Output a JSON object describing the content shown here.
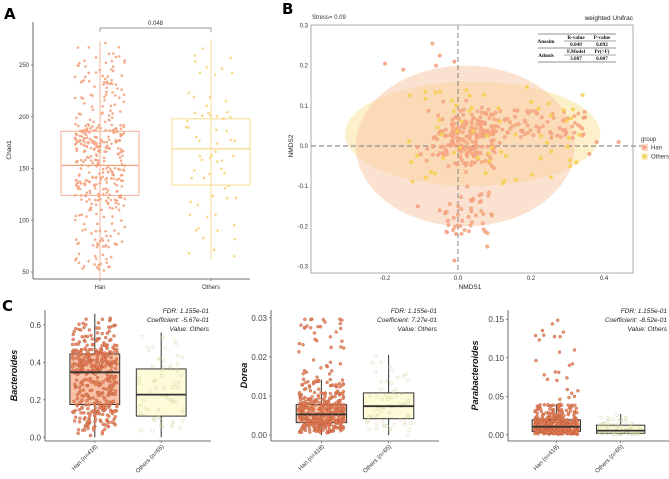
{
  "chart_data": [
    {
      "panel": "A",
      "type": "box-scatter",
      "ylabel": "Chao1",
      "xlabel": "",
      "categories": [
        "Han",
        "Others"
      ],
      "yticks": [
        50,
        100,
        150,
        200,
        250
      ],
      "ylim": [
        43,
        290
      ],
      "significance": {
        "label": "0.048",
        "between": [
          "Han",
          "Others"
        ]
      },
      "boxes": [
        {
          "name": "Han",
          "q1": 124,
          "median": 153,
          "q3": 186,
          "whisker_low": 43,
          "whisker_high": 273,
          "n": 418,
          "color": "#f4a37f"
        },
        {
          "name": "Others",
          "q1": 134,
          "median": 169,
          "q3": 198,
          "whisker_low": 62,
          "whisker_high": 275,
          "n": 65,
          "color": "#f7d57a"
        }
      ]
    },
    {
      "panel": "B",
      "type": "scatter",
      "title": "weighted Unifrac",
      "annotation": "Stress= 0.09",
      "xlabel": "NMDS1",
      "ylabel": "NMDS2",
      "xticks": [
        -0.2,
        0.0,
        0.2,
        0.4
      ],
      "yticks": [
        -0.3,
        -0.2,
        -0.1,
        0.0,
        0.1,
        0.2,
        0.3
      ],
      "xlim": [
        -0.4,
        0.48
      ],
      "ylim": [
        -0.3,
        0.3
      ],
      "legend": {
        "title": "group",
        "position": "right",
        "entries": [
          {
            "name": "Han",
            "color": "#f4a37f"
          },
          {
            "name": "Others",
            "color": "#f5d04e"
          }
        ]
      },
      "ellipses": [
        {
          "group": "Others",
          "cx": 0.04,
          "cy": 0.03,
          "rx": 0.35,
          "ry": 0.13,
          "color": "#fbeab5"
        },
        {
          "group": "Han",
          "cx": 0.02,
          "cy": 0.0,
          "rx": 0.3,
          "ry": 0.2,
          "color": "#f8c8a8"
        }
      ],
      "stats_table": {
        "rows": [
          {
            "test": "Anosim",
            "h1": "R-value",
            "h2": "P-value",
            "v1": "0.049",
            "v2": "0.092"
          },
          {
            "test": "Adonis",
            "h1": "F.Model",
            "h2": "Pr(>F)",
            "v1": "3.887",
            "v2": "0.007"
          }
        ]
      }
    },
    {
      "panel": "C1",
      "type": "box-scatter",
      "ylabel": "Bacteroides",
      "categories": [
        "Han (n=418)",
        "Others (n=65)"
      ],
      "yticks": [
        0.0,
        0.2,
        0.4,
        0.6
      ],
      "ylim": [
        -0.02,
        0.68
      ],
      "annotations": [
        "FDR: 1.155e-01",
        "Coefficient: -5.67e-01",
        "Value: Others"
      ],
      "boxes": [
        {
          "name": "Han",
          "q1": 0.175,
          "median": 0.347,
          "q3": 0.445,
          "whisker_low": 0.0,
          "whisker_high": 0.66,
          "n": 418
        },
        {
          "name": "Others",
          "q1": 0.113,
          "median": 0.228,
          "q3": 0.365,
          "whisker_low": 0.0,
          "whisker_high": 0.56,
          "n": 65
        }
      ]
    },
    {
      "panel": "C2",
      "type": "box-scatter",
      "ylabel": "Dorea",
      "categories": [
        "Han (n=418)",
        "Others (n=65)"
      ],
      "yticks": [
        0.0,
        0.01,
        0.02,
        0.03
      ],
      "ytick_labels": [
        "0.00",
        "0.01",
        "0.02",
        "0.03"
      ],
      "ylim": [
        -0.0015,
        0.032
      ],
      "annotations": [
        "FDR: 1.155e-01",
        "Coefficient: 7.27e-01",
        "Value: Others"
      ],
      "boxes": [
        {
          "name": "Han",
          "q1": 0.0032,
          "median": 0.0053,
          "q3": 0.0078,
          "whisker_low": 0.0,
          "whisker_high": 0.0142,
          "n": 418
        },
        {
          "name": "Others",
          "q1": 0.0042,
          "median": 0.0074,
          "q3": 0.0108,
          "whisker_low": 0.0,
          "whisker_high": 0.0205,
          "n": 65
        }
      ]
    },
    {
      "panel": "C3",
      "type": "box-scatter",
      "ylabel": "Parabacteroides",
      "categories": [
        "Han (n=418)",
        "Others (n=65)"
      ],
      "yticks": [
        0.0,
        0.05,
        0.1,
        0.15
      ],
      "ytick_labels": [
        "0.00",
        "0.05",
        "0.10",
        "0.15"
      ],
      "ylim": [
        -0.008,
        0.162
      ],
      "annotations": [
        "FDR: 1.155e-01",
        "Coefficient: -8.52e-01",
        "Value: Others"
      ],
      "boxes": [
        {
          "name": "Han",
          "q1": 0.0045,
          "median": 0.0105,
          "q3": 0.0195,
          "whisker_low": 0.0,
          "whisker_high": 0.04,
          "n": 418
        },
        {
          "name": "Others",
          "q1": 0.002,
          "median": 0.0055,
          "q3": 0.0125,
          "whisker_low": 0.0,
          "whisker_high": 0.027,
          "n": 65
        }
      ]
    }
  ],
  "panel_labels": [
    "A",
    "B",
    "C"
  ],
  "colors": {
    "han_fill": "#f9c1a6",
    "han_point": "#e9805a",
    "others_fill": "#fdfbd8",
    "others_point": "#cfcf9a",
    "box_line": "#333333"
  }
}
